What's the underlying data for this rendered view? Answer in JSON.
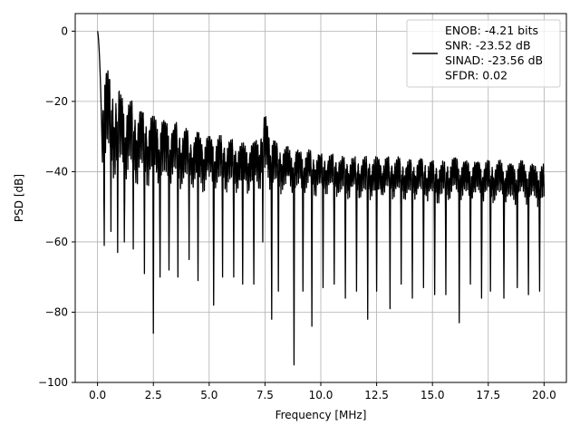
{
  "chart_data": {
    "type": "line",
    "xlabel": "Frequency [MHz]",
    "ylabel": "PSD [dB]",
    "xlim": [
      -1.0,
      21.0
    ],
    "ylim": [
      -100,
      5
    ],
    "xticks": [
      0.0,
      2.5,
      5.0,
      7.5,
      10.0,
      12.5,
      15.0,
      17.5,
      20.0
    ],
    "xtick_labels": [
      "0.0",
      "2.5",
      "5.0",
      "7.5",
      "10.0",
      "12.5",
      "15.0",
      "17.5",
      "20.0"
    ],
    "yticks": [
      0,
      -20,
      -40,
      -60,
      -80,
      -100
    ],
    "ytick_labels": [
      "0",
      "−20",
      "−40",
      "−60",
      "−80",
      "−100"
    ],
    "grid": true,
    "legend_position": "top-right",
    "line_color": "#000000",
    "series": [
      {
        "legend_lines": [
          "ENOB: -4.21 bits",
          "SNR: -23.52 dB",
          "SINAD: -23.56 dB",
          "SFDR: 0.02"
        ],
        "x_range": [
          0.0,
          20.0
        ],
        "lobe_spacing_mhz": 0.5,
        "lobe_peaks": [
          [
            0.0,
            0
          ],
          [
            0.5,
            -13
          ],
          [
            1.0,
            -18
          ],
          [
            1.5,
            -21
          ],
          [
            2.0,
            -23
          ],
          [
            2.5,
            -25
          ],
          [
            3.0,
            -26
          ],
          [
            3.5,
            -27
          ],
          [
            4.0,
            -29
          ],
          [
            4.5,
            -30
          ],
          [
            5.0,
            -31
          ],
          [
            5.5,
            -31
          ],
          [
            6.0,
            -32
          ],
          [
            6.5,
            -33
          ],
          [
            7.0,
            -33
          ],
          [
            7.5,
            -25
          ],
          [
            8.0,
            -33
          ],
          [
            8.5,
            -34
          ],
          [
            9.0,
            -35
          ],
          [
            9.5,
            -35
          ],
          [
            10.0,
            -36
          ],
          [
            10.5,
            -36
          ],
          [
            11.0,
            -37
          ],
          [
            11.5,
            -37
          ],
          [
            12.0,
            -37
          ],
          [
            12.5,
            -37
          ],
          [
            13.0,
            -37
          ],
          [
            13.5,
            -37
          ],
          [
            14.0,
            -38
          ],
          [
            14.5,
            -37
          ],
          [
            15.0,
            -38
          ],
          [
            15.5,
            -38
          ],
          [
            16.0,
            -37
          ],
          [
            16.5,
            -38
          ],
          [
            17.0,
            -38
          ],
          [
            17.5,
            -38
          ],
          [
            18.0,
            -38
          ],
          [
            18.5,
            -39
          ],
          [
            19.0,
            -38
          ],
          [
            19.5,
            -39
          ],
          [
            20.0,
            -39
          ]
        ],
        "notch_minima": [
          [
            0.3,
            -61
          ],
          [
            0.6,
            -57
          ],
          [
            0.9,
            -63
          ],
          [
            1.2,
            -60
          ],
          [
            1.6,
            -62
          ],
          [
            2.1,
            -69
          ],
          [
            2.5,
            -86
          ],
          [
            2.8,
            -70
          ],
          [
            3.2,
            -68
          ],
          [
            3.6,
            -70
          ],
          [
            4.1,
            -65
          ],
          [
            4.5,
            -71
          ],
          [
            5.2,
            -78
          ],
          [
            5.6,
            -70
          ],
          [
            6.1,
            -70
          ],
          [
            6.5,
            -72
          ],
          [
            7.0,
            -72
          ],
          [
            7.4,
            -60
          ],
          [
            7.8,
            -82
          ],
          [
            8.1,
            -74
          ],
          [
            8.8,
            -95
          ],
          [
            9.2,
            -74
          ],
          [
            9.6,
            -84
          ],
          [
            10.1,
            -73
          ],
          [
            10.6,
            -72
          ],
          [
            11.1,
            -76
          ],
          [
            11.6,
            -74
          ],
          [
            12.1,
            -82
          ],
          [
            12.5,
            -74
          ],
          [
            13.1,
            -79
          ],
          [
            13.6,
            -72
          ],
          [
            14.1,
            -76
          ],
          [
            14.6,
            -73
          ],
          [
            15.1,
            -75
          ],
          [
            15.6,
            -75
          ],
          [
            16.2,
            -83
          ],
          [
            16.7,
            -72
          ],
          [
            17.2,
            -76
          ],
          [
            17.6,
            -74
          ],
          [
            18.2,
            -76
          ],
          [
            18.8,
            -73
          ],
          [
            19.3,
            -75
          ],
          [
            19.8,
            -74
          ]
        ]
      }
    ]
  }
}
